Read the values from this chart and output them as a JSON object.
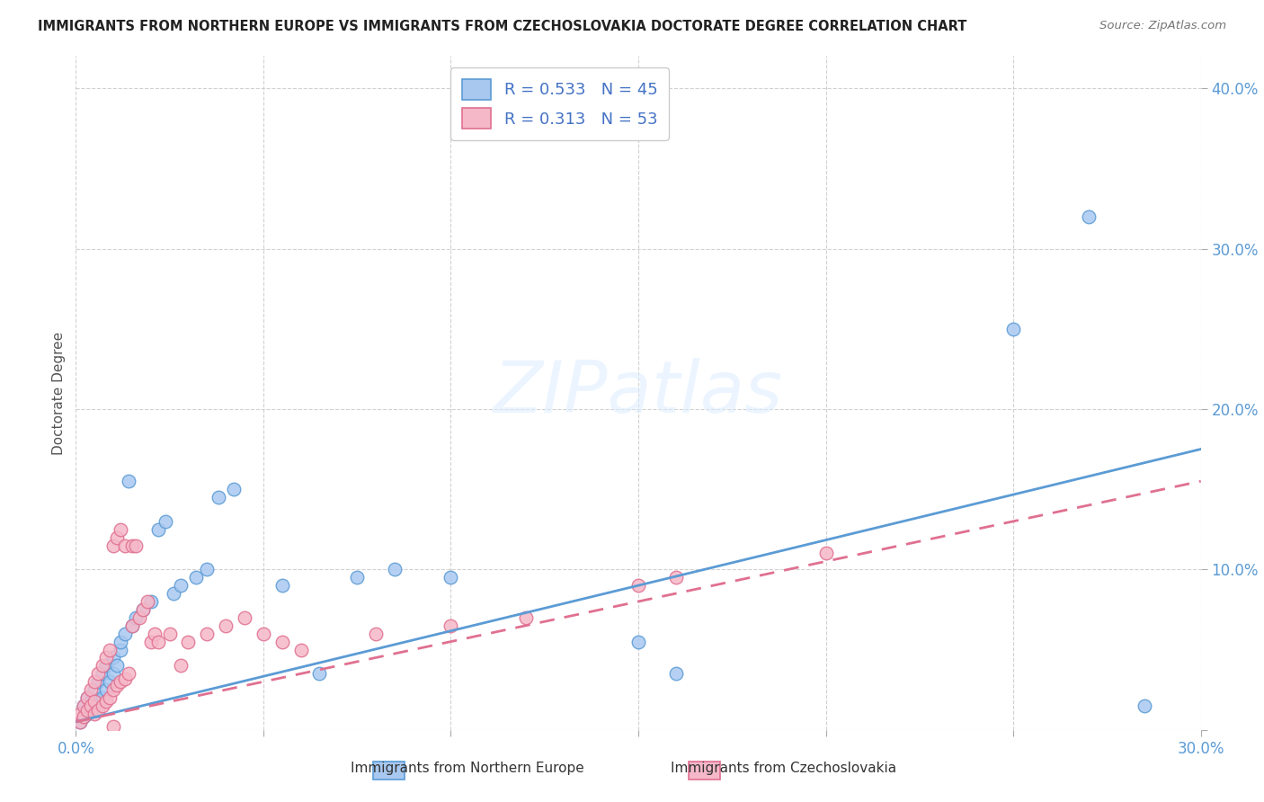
{
  "title": "IMMIGRANTS FROM NORTHERN EUROPE VS IMMIGRANTS FROM CZECHOSLOVAKIA DOCTORATE DEGREE CORRELATION CHART",
  "source": "Source: ZipAtlas.com",
  "ylabel": "Doctorate Degree",
  "xlim": [
    0.0,
    0.3
  ],
  "ylim": [
    0.0,
    0.42
  ],
  "x_ticks": [
    0.0,
    0.05,
    0.1,
    0.15,
    0.2,
    0.25,
    0.3
  ],
  "y_ticks": [
    0.0,
    0.1,
    0.2,
    0.3,
    0.4
  ],
  "blue_color": "#a8c8f0",
  "pink_color": "#f5b8c8",
  "blue_line_color": "#5b9bd5",
  "pink_line_color": "#e07090",
  "blue_line_x0": 0.0,
  "blue_line_y0": 0.005,
  "blue_line_x1": 0.3,
  "blue_line_y1": 0.175,
  "pink_line_x0": 0.0,
  "pink_line_y0": 0.005,
  "pink_line_x1": 0.3,
  "pink_line_y1": 0.155,
  "blue_scatter_x": [
    0.001,
    0.002,
    0.002,
    0.003,
    0.003,
    0.004,
    0.004,
    0.005,
    0.005,
    0.006,
    0.006,
    0.007,
    0.007,
    0.008,
    0.008,
    0.009,
    0.01,
    0.01,
    0.011,
    0.012,
    0.012,
    0.013,
    0.014,
    0.015,
    0.016,
    0.018,
    0.02,
    0.022,
    0.024,
    0.026,
    0.028,
    0.032,
    0.035,
    0.038,
    0.042,
    0.055,
    0.065,
    0.075,
    0.085,
    0.1,
    0.15,
    0.16,
    0.25,
    0.27,
    0.285
  ],
  "blue_scatter_y": [
    0.005,
    0.008,
    0.015,
    0.01,
    0.02,
    0.012,
    0.018,
    0.015,
    0.025,
    0.018,
    0.03,
    0.02,
    0.035,
    0.025,
    0.04,
    0.03,
    0.035,
    0.045,
    0.04,
    0.05,
    0.055,
    0.06,
    0.155,
    0.065,
    0.07,
    0.075,
    0.08,
    0.125,
    0.13,
    0.085,
    0.09,
    0.095,
    0.1,
    0.145,
    0.15,
    0.09,
    0.035,
    0.095,
    0.1,
    0.095,
    0.055,
    0.035,
    0.25,
    0.32,
    0.015
  ],
  "pink_scatter_x": [
    0.001,
    0.001,
    0.002,
    0.002,
    0.003,
    0.003,
    0.004,
    0.004,
    0.005,
    0.005,
    0.005,
    0.006,
    0.006,
    0.007,
    0.007,
    0.008,
    0.008,
    0.009,
    0.009,
    0.01,
    0.01,
    0.011,
    0.011,
    0.012,
    0.012,
    0.013,
    0.013,
    0.014,
    0.015,
    0.015,
    0.016,
    0.017,
    0.018,
    0.019,
    0.02,
    0.021,
    0.022,
    0.025,
    0.028,
    0.03,
    0.035,
    0.04,
    0.045,
    0.05,
    0.055,
    0.06,
    0.08,
    0.1,
    0.12,
    0.15,
    0.16,
    0.2,
    0.01
  ],
  "pink_scatter_y": [
    0.005,
    0.01,
    0.008,
    0.015,
    0.012,
    0.02,
    0.015,
    0.025,
    0.01,
    0.018,
    0.03,
    0.012,
    0.035,
    0.015,
    0.04,
    0.018,
    0.045,
    0.02,
    0.05,
    0.025,
    0.115,
    0.028,
    0.12,
    0.03,
    0.125,
    0.032,
    0.115,
    0.035,
    0.115,
    0.065,
    0.115,
    0.07,
    0.075,
    0.08,
    0.055,
    0.06,
    0.055,
    0.06,
    0.04,
    0.055,
    0.06,
    0.065,
    0.07,
    0.06,
    0.055,
    0.05,
    0.06,
    0.065,
    0.07,
    0.09,
    0.095,
    0.11,
    0.002
  ]
}
